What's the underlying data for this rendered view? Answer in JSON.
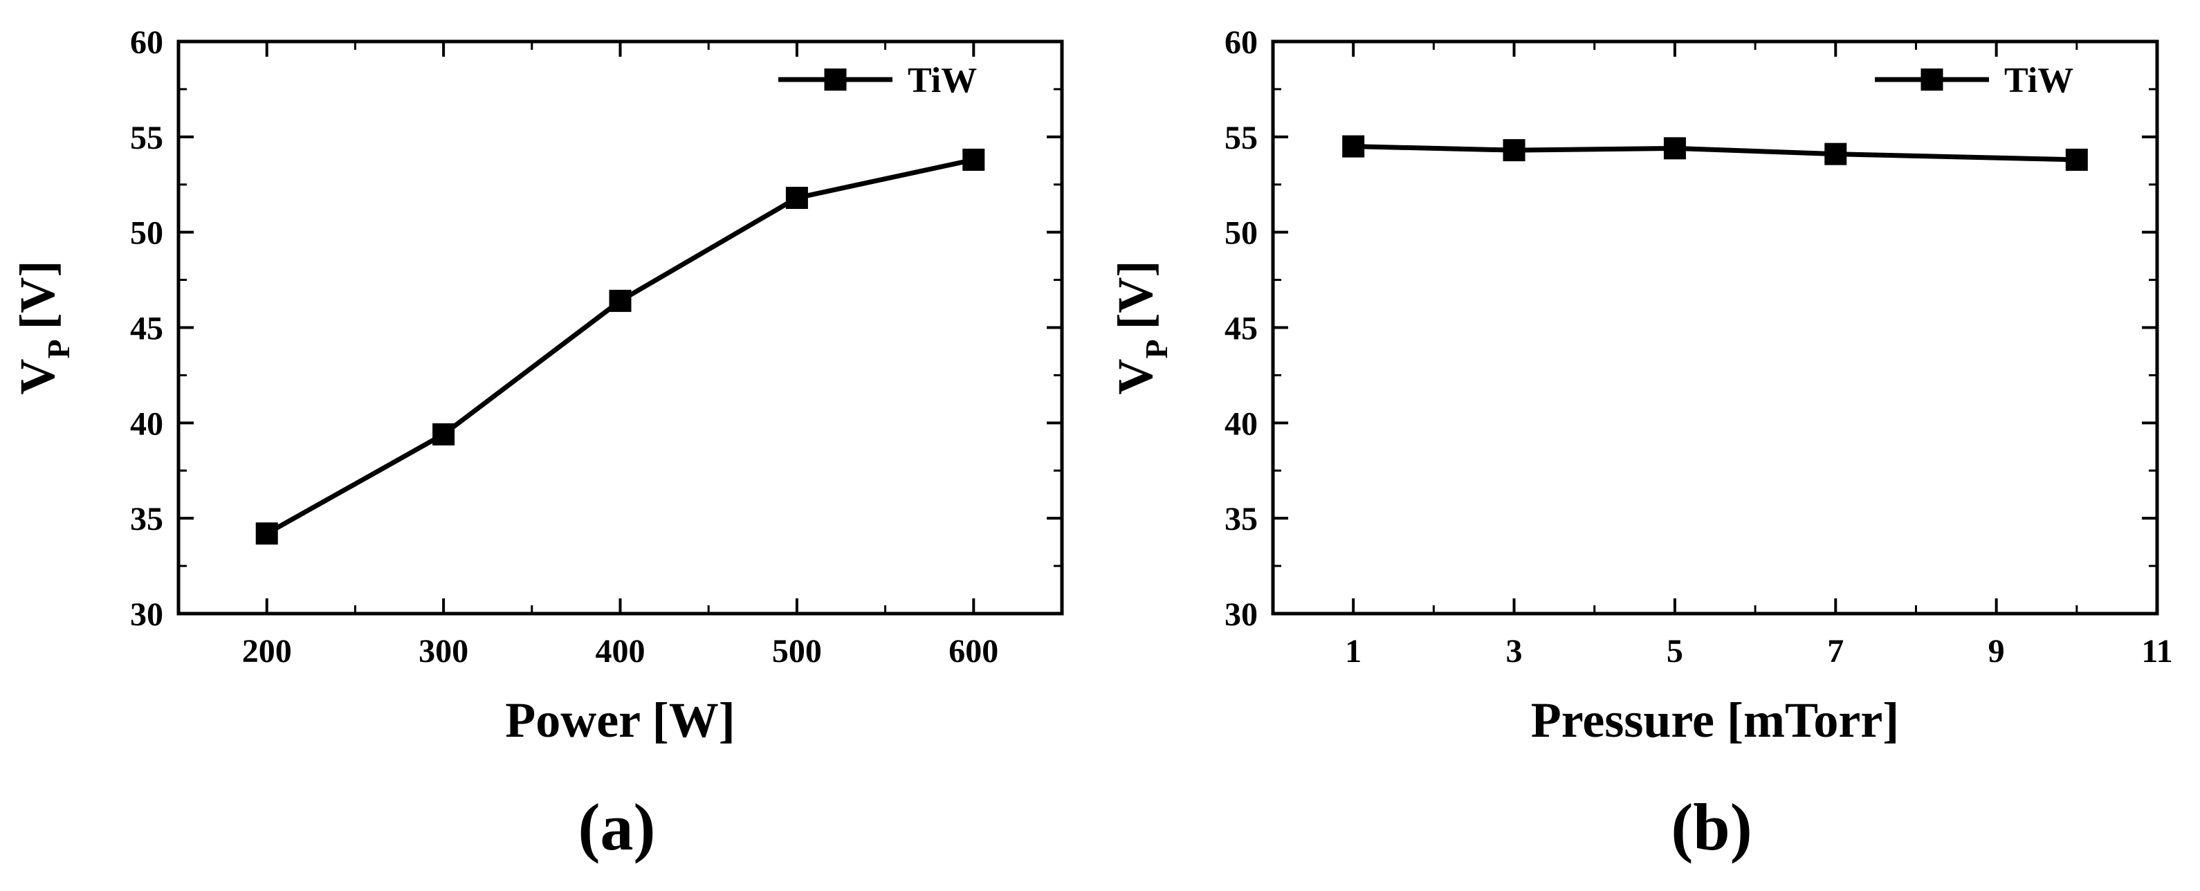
{
  "colors": {
    "line": "#000000",
    "marker": "#000000",
    "background": "#ffffff"
  },
  "chart_data": [
    {
      "type": "line",
      "panel_label": "(a)",
      "xlabel": "Power [W]",
      "ylabel_main": "V",
      "ylabel_sub": "P",
      "ylabel_unit": "[V]",
      "xlim": [
        150,
        650
      ],
      "ylim": [
        30,
        60
      ],
      "xticks": [
        200,
        300,
        400,
        500,
        600
      ],
      "xticks_minor": [
        150,
        250,
        350,
        450,
        550,
        650
      ],
      "yticks": [
        30,
        35,
        40,
        45,
        50,
        55,
        60
      ],
      "grid": false,
      "legend_position": "top-right",
      "series": [
        {
          "name": "TiW",
          "marker": "square",
          "x": [
            200,
            300,
            400,
            500,
            600
          ],
          "y": [
            34.2,
            39.4,
            46.4,
            51.8,
            53.8
          ]
        }
      ]
    },
    {
      "type": "line",
      "panel_label": "(b)",
      "xlabel": "Pressure [mTorr]",
      "ylabel_main": "V",
      "ylabel_sub": "P",
      "ylabel_unit": "[V]",
      "xlim": [
        0,
        11
      ],
      "ylim": [
        30,
        60
      ],
      "xticks": [
        1,
        3,
        5,
        7,
        9,
        11
      ],
      "xticks_minor": [
        2,
        4,
        6,
        8,
        10
      ],
      "yticks": [
        30,
        35,
        40,
        45,
        50,
        55,
        60
      ],
      "grid": false,
      "legend_position": "top-right",
      "series": [
        {
          "name": "TiW",
          "marker": "square",
          "x": [
            1,
            3,
            5,
            7,
            10
          ],
          "y": [
            54.5,
            54.3,
            54.4,
            54.1,
            53.8
          ]
        }
      ]
    }
  ]
}
